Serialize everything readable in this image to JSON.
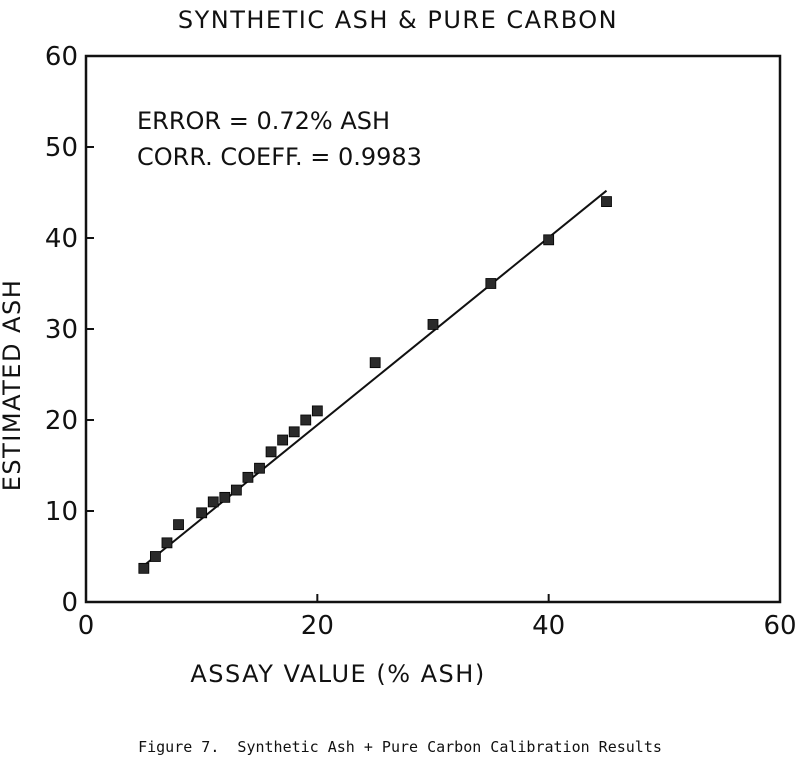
{
  "chart_data": {
    "type": "scatter",
    "title": "SYNTHETIC ASH & PURE CARBON",
    "xlabel": "ASSAY VALUE (% ASH)",
    "ylabel": "ESTIMATED ASH",
    "xlim": [
      0,
      60
    ],
    "ylim": [
      0,
      60
    ],
    "xticks": [
      0,
      20,
      40,
      60
    ],
    "yticks": [
      0,
      10,
      20,
      30,
      40,
      50,
      60
    ],
    "grid": false,
    "annotations": [
      "ERROR = 0.72% ASH",
      "CORR. COEFF. = 0.9983"
    ],
    "points": [
      [
        5,
        3.7
      ],
      [
        6,
        5.0
      ],
      [
        7,
        6.5
      ],
      [
        8,
        8.5
      ],
      [
        10,
        9.8
      ],
      [
        11,
        11.0
      ],
      [
        12,
        11.5
      ],
      [
        13,
        12.3
      ],
      [
        14,
        13.7
      ],
      [
        15,
        14.7
      ],
      [
        16,
        16.5
      ],
      [
        17,
        17.8
      ],
      [
        18,
        18.7
      ],
      [
        19,
        20.0
      ],
      [
        20,
        21.0
      ],
      [
        25,
        26.3
      ],
      [
        30,
        30.5
      ],
      [
        35,
        35.0
      ],
      [
        40,
        39.8
      ],
      [
        45,
        44.0
      ]
    ],
    "fit_line": {
      "x": [
        5,
        45
      ],
      "y": [
        4.0,
        45.2
      ]
    },
    "colors": {
      "marker": "#2a2a2a",
      "line": "#111111"
    }
  },
  "caption": "Figure 7.  Synthetic Ash + Pure Carbon Calibration Results"
}
